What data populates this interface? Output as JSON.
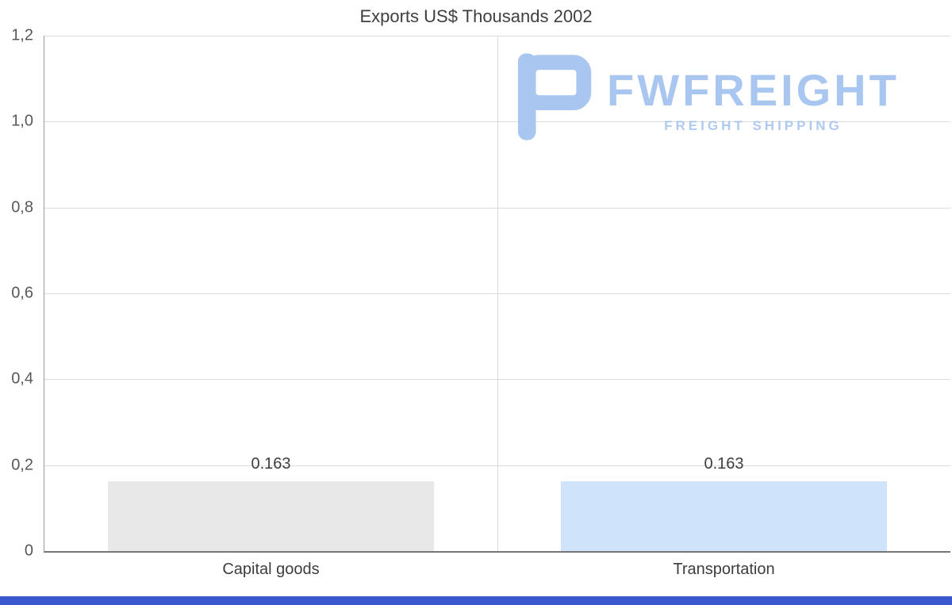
{
  "page": {
    "footer_color": "#3b57ce"
  },
  "chart_data": {
    "type": "bar",
    "title": "Exports US$ Thousands 2002",
    "categories": [
      "Capital goods",
      "Transportation"
    ],
    "values": [
      0.163,
      0.163
    ],
    "value_labels": [
      "0.163",
      "0.163"
    ],
    "bar_colors": [
      "#e8e8e8",
      "#cfe4fb"
    ],
    "ylim": [
      0,
      1.2
    ],
    "ytick_step": 0.2,
    "ytick_labels": [
      "0",
      "0,2",
      "0,4",
      "0,6",
      "0,8",
      "1,0",
      "1,2"
    ],
    "grid": true,
    "legend": false,
    "xlabel": "",
    "ylabel": ""
  },
  "watermark": {
    "brand": "FWFREIGHT",
    "tagline": "FREIGHT SHIPPING",
    "color": "#a9c6f0"
  }
}
